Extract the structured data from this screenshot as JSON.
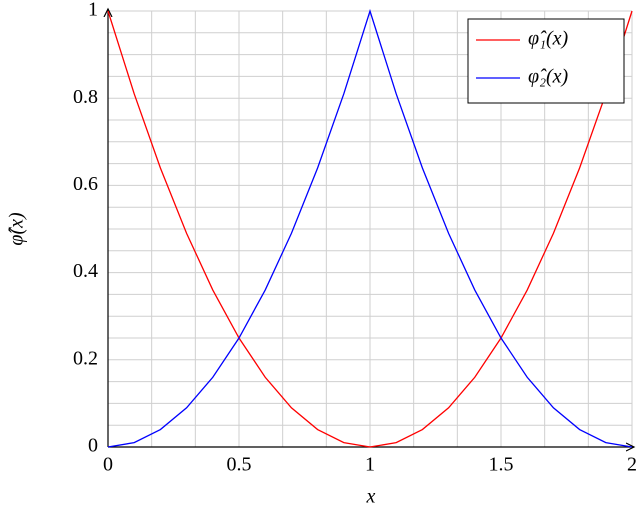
{
  "chart_data": {
    "type": "line",
    "x": [
      0,
      0.1,
      0.2,
      0.3,
      0.4,
      0.5,
      0.6,
      0.7,
      0.8,
      0.9,
      1,
      1.1,
      1.2,
      1.3,
      1.4,
      1.5,
      1.6,
      1.7,
      1.8,
      1.9,
      2
    ],
    "series": [
      {
        "name": "φ̂₁(x)",
        "color": "#ff0000",
        "values": [
          1,
          0.81,
          0.64,
          0.49,
          0.36,
          0.25,
          0.16,
          0.09,
          0.04,
          0.01,
          0,
          0.01,
          0.04,
          0.09,
          0.16,
          0.25,
          0.36,
          0.49,
          0.64,
          0.81,
          1
        ]
      },
      {
        "name": "φ̂₂(x)",
        "color": "#0000ff",
        "values": [
          0,
          0.01,
          0.04,
          0.09,
          0.16,
          0.25,
          0.36,
          0.49,
          0.64,
          0.81,
          1,
          0.81,
          0.64,
          0.49,
          0.36,
          0.25,
          0.16,
          0.09,
          0.04,
          0.01,
          0
        ]
      }
    ],
    "x_label": "x",
    "y_label": "φ̂(x)",
    "xlim": [
      0,
      2
    ],
    "ylim": [
      0,
      1
    ],
    "xticks": [
      0,
      0.5,
      1,
      1.5,
      2
    ],
    "yticks": [
      0,
      0.2,
      0.4,
      0.6,
      0.8,
      1
    ],
    "grid": true,
    "legend": "top-right"
  }
}
